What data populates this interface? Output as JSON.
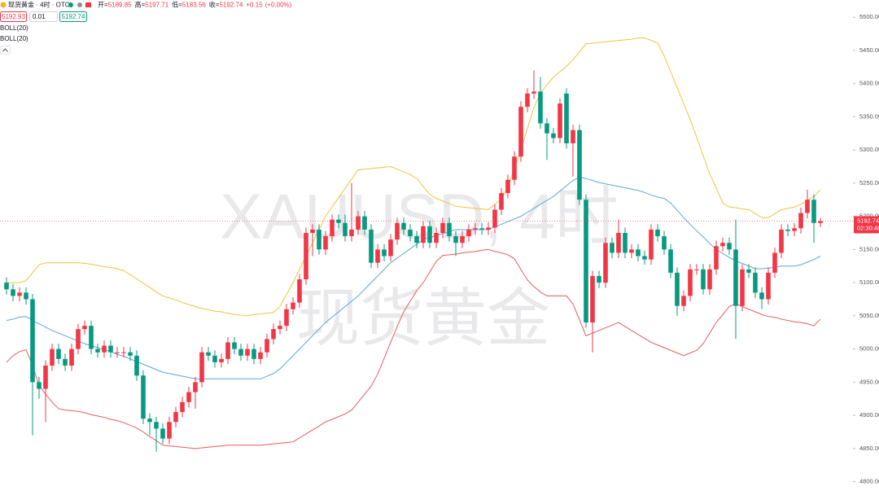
{
  "ui": {
    "title": "现货黄金 · 4时 · OTC",
    "labels": [
      "开=",
      "高=",
      "低=",
      "收="
    ],
    "change": "+0.15",
    "change_pct": "(+0.00%)",
    "bid": 5192.93,
    "qty": 0.01,
    "indicators": [
      "BOLL(20)",
      "BOLL(20)"
    ],
    "countdown": "02:30:48",
    "watermark": [
      "XAUUSD, 4时",
      "现货黄金"
    ]
  },
  "chart_data": {
    "type": "candlestick",
    "up_color": "#f23645",
    "down_color": "#089981",
    "ylim": [
      4786,
      5526
    ],
    "yticks": [
      {
        "value": 4800,
        "label": "4800.00"
      },
      {
        "value": 4850,
        "label": "4850.00"
      },
      {
        "value": 4900,
        "label": "4900.00"
      },
      {
        "value": 4950,
        "label": "4950.00"
      },
      {
        "value": 5000,
        "label": "5000.00"
      },
      {
        "value": 5050,
        "label": "5050.00"
      },
      {
        "value": 5100,
        "label": "5100.00"
      },
      {
        "value": 5150,
        "label": "5150.00"
      },
      {
        "value": 5200,
        "label": "5200.00"
      },
      {
        "value": 5250,
        "label": "5250.00"
      },
      {
        "value": 5300,
        "label": "5300.00"
      },
      {
        "value": 5350,
        "label": "5350.00"
      },
      {
        "value": 5400,
        "label": "5400.00"
      },
      {
        "value": 5450,
        "label": "5450.00"
      },
      {
        "value": 5500,
        "label": "5500.00"
      }
    ],
    "open": [
      5100,
      5090,
      5080,
      5085,
      5075,
      4950,
      4940,
      4975,
      5000,
      4985,
      4975,
      5000,
      5030,
      5035,
      5000,
      4995,
      5005,
      4995,
      4995,
      4995,
      4990,
      4960,
      4895,
      4890,
      4880,
      4865,
      4890,
      4905,
      4920,
      4935,
      4950,
      4995,
      4990,
      4980,
      4985,
      5010,
      5000,
      4990,
      5000,
      4985,
      4995,
      5015,
      5030,
      5035,
      5060,
      5070,
      5105,
      5175,
      5180,
      5150,
      5170,
      5195,
      5190,
      5170,
      5180,
      5200,
      5180,
      5130,
      5150,
      5140,
      5165,
      5190,
      5180,
      5170,
      5160,
      5185,
      5160,
      5175,
      5190,
      5170,
      5160,
      5170,
      5180,
      5182,
      5180,
      5183,
      5210,
      5235,
      5255,
      5290,
      5365,
      5385,
      5388,
      5340,
      5325,
      5318,
      5385,
      5310,
      5330,
      5225,
      5040,
      5110,
      5100,
      5160,
      5145,
      5175,
      5145,
      5150,
      5140,
      5135,
      5180,
      5170,
      5150,
      5115,
      5065,
      5080,
      5120,
      5120,
      5090,
      5120,
      5155,
      5160,
      5150,
      5065,
      5120,
      5115,
      5085,
      5075,
      5115,
      5145,
      5180,
      5178,
      5182,
      5205,
      5225,
      5189.85
    ],
    "high": [
      5108,
      5098,
      5093,
      5093,
      5083,
      4958,
      4983,
      5008,
      5008,
      4993,
      5008,
      5038,
      5043,
      5043,
      5008,
      5013,
      5013,
      5003,
      5003,
      5003,
      4998,
      4968,
      4903,
      4898,
      4888,
      4898,
      4913,
      4928,
      4943,
      4958,
      5003,
      5003,
      4998,
      4993,
      5018,
      5018,
      5008,
      5008,
      5008,
      5003,
      5023,
      5038,
      5043,
      5068,
      5078,
      5113,
      5183,
      5188,
      5188,
      5178,
      5203,
      5203,
      5203,
      5250,
      5208,
      5208,
      5188,
      5158,
      5158,
      5173,
      5198,
      5198,
      5188,
      5178,
      5193,
      5193,
      5183,
      5198,
      5198,
      5178,
      5178,
      5188,
      5190,
      5190,
      5191,
      5218,
      5243,
      5263,
      5298,
      5373,
      5393,
      5420,
      5410,
      5348,
      5333,
      5378,
      5393,
      5338,
      5338,
      5233,
      5118,
      5118,
      5168,
      5168,
      5195,
      5183,
      5158,
      5158,
      5148,
      5188,
      5188,
      5178,
      5158,
      5123,
      5088,
      5128,
      5128,
      5128,
      5128,
      5163,
      5168,
      5168,
      5195,
      5128,
      5128,
      5123,
      5093,
      5123,
      5153,
      5188,
      5188,
      5190,
      5213,
      5240,
      5233,
      5197.71
    ],
    "low": [
      5082,
      5072,
      5072,
      5067,
      4870,
      4925,
      4890,
      4967,
      4977,
      4967,
      4967,
      4992,
      5022,
      4992,
      4987,
      4987,
      4987,
      4987,
      4987,
      4982,
      4952,
      4887,
      4870,
      4845,
      4857,
      4857,
      4882,
      4897,
      4912,
      4910,
      4942,
      4982,
      4972,
      4972,
      4977,
      4992,
      4982,
      4982,
      4977,
      4977,
      4987,
      5007,
      5022,
      5027,
      5052,
      5062,
      5097,
      5140,
      5142,
      5142,
      5162,
      5182,
      5162,
      5162,
      5172,
      5172,
      5122,
      5122,
      5132,
      5132,
      5157,
      5172,
      5162,
      5152,
      5152,
      5152,
      5152,
      5167,
      5162,
      5140,
      5152,
      5162,
      5172,
      5172,
      5172,
      5175,
      5202,
      5227,
      5247,
      5282,
      5357,
      5377,
      5332,
      5285,
      5310,
      5310,
      5302,
      5260,
      5217,
      5032,
      4995,
      5092,
      5092,
      5137,
      5137,
      5137,
      5137,
      5132,
      5127,
      5127,
      5162,
      5142,
      5107,
      5050,
      5057,
      5072,
      5112,
      5082,
      5082,
      5112,
      5147,
      5142,
      5015,
      5057,
      5107,
      5077,
      5060,
      5067,
      5107,
      5137,
      5170,
      5170,
      5174,
      5197,
      5160,
      5183.56
    ],
    "close": [
      5090,
      5080,
      5085,
      5075,
      4950,
      4940,
      4975,
      5000,
      4985,
      4975,
      5000,
      5030,
      5035,
      5000,
      4995,
      5005,
      4995,
      4995,
      4995,
      4990,
      4960,
      4895,
      4890,
      4880,
      4865,
      4890,
      4905,
      4920,
      4935,
      4950,
      4995,
      4990,
      4980,
      4985,
      5010,
      5000,
      4990,
      5000,
      4985,
      4995,
      5015,
      5030,
      5035,
      5060,
      5070,
      5105,
      5175,
      5180,
      5150,
      5170,
      5195,
      5190,
      5170,
      5180,
      5200,
      5180,
      5130,
      5150,
      5140,
      5165,
      5190,
      5180,
      5170,
      5160,
      5185,
      5160,
      5175,
      5190,
      5170,
      5160,
      5170,
      5180,
      5182,
      5180,
      5183,
      5210,
      5235,
      5255,
      5290,
      5365,
      5385,
      5388,
      5340,
      5325,
      5318,
      5370,
      5310,
      5330,
      5225,
      5040,
      5110,
      5100,
      5160,
      5145,
      5175,
      5145,
      5150,
      5140,
      5135,
      5180,
      5170,
      5150,
      5115,
      5065,
      5080,
      5120,
      5120,
      5090,
      5120,
      5155,
      5160,
      5150,
      5065,
      5120,
      5115,
      5085,
      5075,
      5115,
      5145,
      5180,
      5178,
      5182,
      5205,
      5225,
      5190,
      5192.74
    ],
    "series": [
      {
        "color": "#f2c23c",
        "values": [
          5100,
          5100,
          5100,
          5103,
          5115,
          5127,
          5130,
          5130,
          5130,
          5130,
          5130,
          5130,
          5129,
          5128,
          5126,
          5124,
          5123,
          5121,
          5118,
          5112,
          5106,
          5099,
          5093,
          5086,
          5080,
          5077,
          5074,
          5070,
          5067,
          5064,
          5061,
          5059,
          5057,
          5056,
          5054,
          5052,
          5051,
          5050,
          5052,
          5053,
          5054,
          5055,
          5064,
          5082,
          5100,
          5120,
          5140,
          5160,
          5180,
          5200,
          5214,
          5228,
          5242,
          5256,
          5270,
          5271,
          5272,
          5273,
          5274,
          5275,
          5271,
          5267,
          5263,
          5257,
          5245,
          5233,
          5227,
          5223,
          5219,
          5215,
          5214,
          5213,
          5212,
          5211,
          5210,
          5218,
          5226,
          5244,
          5272,
          5300,
          5332,
          5364,
          5386,
          5398,
          5410,
          5418,
          5426,
          5436,
          5448,
          5460,
          5461,
          5462,
          5463,
          5464,
          5465,
          5466,
          5467,
          5469,
          5469,
          5465,
          5461,
          5442,
          5418,
          5394,
          5370,
          5346,
          5319,
          5291,
          5264,
          5243,
          5220,
          5214,
          5213,
          5211,
          5210,
          5204,
          5198,
          5198,
          5204,
          5210,
          5212,
          5214,
          5218,
          5224,
          5230,
          5240
        ]
      },
      {
        "color": "#5aa6dd",
        "values": [
          5043,
          5045,
          5048,
          5049,
          5043,
          5038,
          5033,
          5028,
          5024,
          5020,
          5016,
          5012,
          5008,
          5005,
          5002,
          4999,
          4996,
          4992,
          4989,
          4985,
          4981,
          4977,
          4973,
          4969,
          4965,
          4963,
          4961,
          4959,
          4957,
          4955,
          4955,
          4955,
          4955,
          4955,
          4955,
          4955,
          4955,
          4955,
          4955,
          4955,
          4959,
          4963,
          4970,
          4980,
          4990,
          5000,
          5010,
          5020,
          5030,
          5040,
          5048,
          5056,
          5064,
          5072,
          5080,
          5090,
          5100,
          5110,
          5120,
          5130,
          5137,
          5144,
          5151,
          5158,
          5165,
          5168,
          5171,
          5174,
          5177,
          5180,
          5180,
          5180,
          5180,
          5180,
          5180,
          5184,
          5188,
          5192,
          5196,
          5200,
          5206,
          5212,
          5218,
          5224,
          5230,
          5238,
          5246,
          5254,
          5259,
          5257,
          5254,
          5251,
          5249,
          5247,
          5245,
          5243,
          5241,
          5239,
          5236,
          5232,
          5229,
          5227,
          5220,
          5209,
          5198,
          5188,
          5178,
          5169,
          5159,
          5150,
          5144,
          5138,
          5133,
          5129,
          5125,
          5121,
          5121,
          5122,
          5123,
          5125,
          5125,
          5125,
          5127,
          5131,
          5135,
          5140
        ]
      },
      {
        "color": "#e35d5d",
        "values": [
          4980,
          4990,
          4996,
          4999,
          4975,
          4945,
          4932,
          4920,
          4910,
          4908,
          4907,
          4906,
          4904,
          4901,
          4899,
          4897,
          4894,
          4892,
          4889,
          4885,
          4881,
          4875,
          4868,
          4862,
          4855,
          4854,
          4853,
          4852,
          4851,
          4850,
          4851,
          4852,
          4853,
          4854,
          4855,
          4855,
          4855,
          4855,
          4855,
          4855,
          4856,
          4857,
          4858,
          4859,
          4860,
          4866,
          4872,
          4878,
          4884,
          4890,
          4894,
          4898,
          4902,
          4908,
          4920,
          4932,
          4944,
          4962,
          4986,
          5010,
          5034,
          5056,
          5072,
          5088,
          5100,
          5116,
          5132,
          5141,
          5142,
          5143,
          5145,
          5146,
          5147,
          5149,
          5150,
          5147,
          5145,
          5142,
          5136,
          5120,
          5104,
          5094,
          5086,
          5080,
          5080,
          5080,
          5080,
          5068,
          5044,
          5020,
          5024,
          5028,
          5032,
          5036,
          5040,
          5034,
          5028,
          5022,
          5016,
          5010,
          5006,
          5002,
          4998,
          4994,
          4990,
          4994,
          4998,
          5008,
          5024,
          5040,
          5052,
          5064,
          5068,
          5064,
          5060,
          5056,
          5052,
          5049,
          5048,
          5045,
          5043,
          5041,
          5040,
          5038,
          5035,
          5045
        ]
      }
    ]
  }
}
